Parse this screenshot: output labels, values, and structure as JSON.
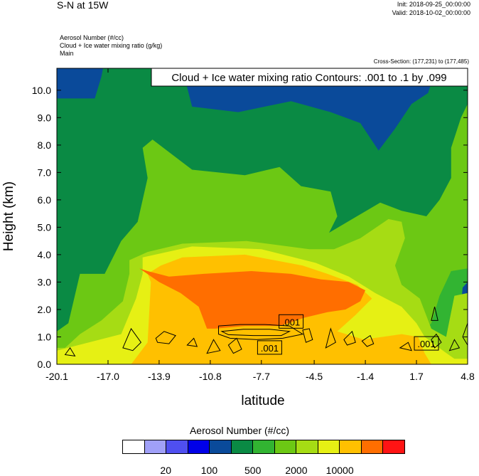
{
  "header": {
    "title": "S-N at 15W",
    "init": "Init: 2018-09-25_00:00:00",
    "valid": "Valid: 2018-10-02_00:00:00",
    "fields": [
      "Aerosol Number   (#/cc)",
      "Cloud + Ice water mixing ratio   (g/kg)",
      "Main"
    ],
    "cross_section": "Cross-Section: (177,231) to (177,485)"
  },
  "colors": {
    "levels": [
      "#ffffff",
      "#a0a0f8",
      "#4f4ff0",
      "#0000e8",
      "#0a4a9a",
      "#0a8a44",
      "#32b432",
      "#6cc814",
      "#a6dc14",
      "#e6f014",
      "#ffc000",
      "#ff6e00",
      "#ff1414"
    ]
  },
  "chart_data": {
    "type": "heatmap",
    "title": "",
    "xlabel": "latitude",
    "ylabel": "Height (km)",
    "annotation": "Cloud + Ice water mixing ratio Contours: .001 to .1 by .099",
    "x_ticks": [
      "-20.1",
      "-17.0",
      "-13.9",
      "-10.8",
      "-7.7",
      "-4.5",
      "-1.4",
      "1.7",
      "4.8"
    ],
    "x_tick_values": [
      -20.1,
      -17.0,
      -13.9,
      -10.8,
      -7.7,
      -4.5,
      -1.4,
      1.7,
      4.8
    ],
    "y_ticks": [
      "0.0",
      "1.0",
      "2.0",
      "3.0",
      "4.0",
      "5.0",
      "6.0",
      "7.0",
      "8.0",
      "9.0",
      "10.0"
    ],
    "y_tick_values": [
      0,
      1,
      2,
      3,
      4,
      5,
      6,
      7,
      8,
      9,
      10
    ],
    "xlim": [
      -20.1,
      4.8
    ],
    "ylim": [
      0,
      10.8
    ],
    "contour_labels": [
      {
        "text": ".001",
        "x": -5.9,
        "y": 1.55
      },
      {
        "text": ".001",
        "x": -7.2,
        "y": 0.6
      },
      {
        "text": ".001",
        "x": 2.3,
        "y": 0.75
      }
    ],
    "colorbar": {
      "title": "Aerosol Number  (#/cc)",
      "labels": [
        "20",
        "100",
        "500",
        "2000",
        "10000"
      ]
    },
    "regions": [
      {
        "level": 7,
        "poly": [
          [
            -20.1,
            0
          ],
          [
            4.8,
            0
          ],
          [
            4.8,
            10.8
          ],
          [
            -20.1,
            10.8
          ]
        ]
      },
      {
        "level": 6,
        "poly": [
          [
            -20.1,
            0
          ],
          [
            4.8,
            0
          ],
          [
            4.8,
            3.5
          ],
          [
            3.8,
            3.4
          ],
          [
            3.1,
            2.5
          ],
          [
            2.6,
            1.5
          ],
          [
            1.8,
            1.0
          ],
          [
            -1.4,
            0.6
          ],
          [
            -10.5,
            0.5
          ],
          [
            -20.1,
            0.6
          ]
        ]
      },
      {
        "level": 5,
        "poly": [
          [
            -20.1,
            1.2
          ],
          [
            -19.4,
            1.5
          ],
          [
            -18.7,
            3.3
          ],
          [
            -17.2,
            3.3
          ],
          [
            -16.2,
            4.5
          ],
          [
            -15.2,
            5.2
          ],
          [
            -14.6,
            6.8
          ],
          [
            -14.9,
            7.9
          ],
          [
            -14.3,
            8.2
          ],
          [
            -11.9,
            7.1
          ],
          [
            -8.7,
            6.9
          ],
          [
            -6.6,
            7.2
          ],
          [
            -5.3,
            6.5
          ],
          [
            -3.5,
            6.3
          ],
          [
            -3.1,
            5.4
          ],
          [
            -3.6,
            4.8
          ],
          [
            -0.5,
            5.9
          ],
          [
            0.8,
            5.6
          ],
          [
            2.3,
            5.4
          ],
          [
            3.1,
            6.0
          ],
          [
            3.8,
            6.8
          ],
          [
            3.8,
            7.9
          ],
          [
            4.4,
            9.0
          ],
          [
            4.8,
            9.5
          ],
          [
            4.8,
            10.8
          ],
          [
            -20.1,
            10.8
          ]
        ]
      },
      {
        "level": 4,
        "poly": [
          [
            -20.1,
            9.7
          ],
          [
            -17.8,
            9.7
          ],
          [
            -17.4,
            10.5
          ],
          [
            -17.3,
            10.8
          ],
          [
            -20.1,
            10.8
          ]
        ]
      },
      {
        "level": 4,
        "poly": [
          [
            -12.5,
            10.8
          ],
          [
            -11.9,
            9.4
          ],
          [
            -9.1,
            9.2
          ],
          [
            -5.9,
            9.6
          ],
          [
            -3.5,
            9.2
          ],
          [
            -1.7,
            8.8
          ],
          [
            -0.6,
            7.8
          ],
          [
            0.4,
            8.6
          ],
          [
            1.4,
            9.5
          ],
          [
            2.4,
            9.9
          ],
          [
            2.9,
            10.8
          ]
        ]
      },
      {
        "level": 4,
        "poly": [
          [
            4.4,
            2.2
          ],
          [
            4.8,
            2.2
          ],
          [
            4.8,
            3.0
          ],
          [
            4.5,
            2.8
          ]
        ]
      },
      {
        "level": 8,
        "poly": [
          [
            -20.1,
            0.6
          ],
          [
            -19.6,
            0.6
          ],
          [
            -18.7,
            1.1
          ],
          [
            -17.4,
            1.6
          ],
          [
            -16.1,
            2.3
          ],
          [
            -15.7,
            3.3
          ],
          [
            -15.7,
            3.8
          ],
          [
            -14.6,
            4.1
          ],
          [
            -12.5,
            4.4
          ],
          [
            -8.6,
            4.5
          ],
          [
            -4.8,
            4.2
          ],
          [
            -3.3,
            4.2
          ],
          [
            -1.7,
            4.6
          ],
          [
            0.0,
            5.3
          ],
          [
            0.8,
            5.2
          ],
          [
            1.0,
            4.6
          ],
          [
            0.4,
            3.6
          ],
          [
            0.8,
            2.9
          ],
          [
            1.9,
            2.4
          ],
          [
            2.6,
            1.3
          ],
          [
            3.5,
            1.0
          ],
          [
            4.0,
            2.5
          ],
          [
            4.8,
            2.6
          ],
          [
            4.8,
            0
          ],
          [
            -20.1,
            0
          ]
        ]
      },
      {
        "level": 9,
        "poly": [
          [
            -20.1,
            0
          ],
          [
            -20.1,
            0.5
          ],
          [
            -16.2,
            1.1
          ],
          [
            -15.3,
            2.4
          ],
          [
            -14.9,
            3.3
          ],
          [
            -14.9,
            3.9
          ],
          [
            -11.9,
            4.3
          ],
          [
            -7.7,
            4.2
          ],
          [
            -4.4,
            3.7
          ],
          [
            -2.4,
            3.2
          ],
          [
            -0.8,
            2.6
          ],
          [
            0.8,
            2.1
          ],
          [
            1.7,
            1.5
          ],
          [
            2.2,
            1.0
          ],
          [
            3.3,
            0.5
          ],
          [
            4.0,
            0.2
          ],
          [
            4.8,
            0.2
          ],
          [
            4.8,
            0
          ]
        ]
      },
      {
        "level": 10,
        "poly": [
          [
            -15.6,
            0
          ],
          [
            -14.6,
            0.8
          ],
          [
            -14.4,
            3.0
          ],
          [
            -14.6,
            3.3
          ],
          [
            -13.8,
            3.6
          ],
          [
            -12.5,
            3.9
          ],
          [
            -8.7,
            4.0
          ],
          [
            -5.2,
            3.6
          ],
          [
            -3.7,
            3.3
          ],
          [
            -1.9,
            2.9
          ],
          [
            -1.0,
            2.4
          ],
          [
            -2.0,
            1.8
          ],
          [
            -3.1,
            1.2
          ],
          [
            -1.5,
            0.9
          ],
          [
            0.8,
            1.1
          ],
          [
            1.8,
            1.0
          ],
          [
            2.2,
            0.4
          ],
          [
            2.6,
            0
          ],
          [
            -15.6,
            0
          ]
        ]
      },
      {
        "level": 11,
        "poly": [
          [
            -15.1,
            3.5
          ],
          [
            -13.9,
            3.0
          ],
          [
            -12.6,
            2.6
          ],
          [
            -11.5,
            2.1
          ],
          [
            -11.0,
            1.3
          ],
          [
            -10.5,
            1.3
          ],
          [
            -8.7,
            1.4
          ],
          [
            -6.6,
            1.4
          ],
          [
            -5.1,
            1.7
          ],
          [
            -3.7,
            1.9
          ],
          [
            -2.6,
            2.0
          ],
          [
            -1.7,
            2.3
          ],
          [
            -1.4,
            2.7
          ],
          [
            -2.4,
            3.0
          ],
          [
            -4.1,
            3.1
          ],
          [
            -5.9,
            3.3
          ],
          [
            -8.3,
            3.4
          ],
          [
            -11.2,
            3.3
          ],
          [
            -13.3,
            3.2
          ],
          [
            -14.6,
            3.4
          ]
        ]
      }
    ],
    "contours": [
      [
        [
          -10.3,
          1.4
        ],
        [
          -9.0,
          1.45
        ],
        [
          -7.5,
          1.45
        ],
        [
          -6.0,
          1.4
        ],
        [
          -5.2,
          1.1
        ],
        [
          -6.4,
          0.95
        ],
        [
          -8.0,
          0.9
        ],
        [
          -9.6,
          0.95
        ],
        [
          -10.3,
          1.1
        ]
      ],
      [
        [
          -10.1,
          1.2
        ],
        [
          -8.8,
          1.28
        ],
        [
          -7.2,
          1.28
        ],
        [
          -6.0,
          1.2
        ],
        [
          -6.5,
          1.05
        ],
        [
          -8.2,
          1.05
        ],
        [
          -9.7,
          1.08
        ]
      ],
      [
        [
          -16.1,
          0.6
        ],
        [
          -15.6,
          1.3
        ],
        [
          -15.0,
          0.8
        ],
        [
          -15.5,
          0.5
        ]
      ],
      [
        [
          -14.1,
          0.95
        ],
        [
          -13.6,
          1.2
        ],
        [
          -12.9,
          1.05
        ],
        [
          -13.3,
          0.75
        ],
        [
          -14.0,
          0.8
        ]
      ],
      [
        [
          -12.2,
          0.7
        ],
        [
          -11.8,
          0.95
        ],
        [
          -11.6,
          0.65
        ]
      ],
      [
        [
          -11.0,
          0.4
        ],
        [
          -10.6,
          0.9
        ],
        [
          -10.2,
          0.5
        ]
      ],
      [
        [
          -9.7,
          0.7
        ],
        [
          -9.2,
          0.95
        ],
        [
          -8.9,
          0.55
        ],
        [
          -9.4,
          0.4
        ]
      ],
      [
        [
          -5.2,
          1.25
        ],
        [
          -4.8,
          1.3
        ],
        [
          -4.6,
          0.9
        ],
        [
          -5.0,
          0.8
        ]
      ],
      [
        [
          -3.8,
          0.6
        ],
        [
          -3.5,
          1.3
        ],
        [
          -3.2,
          0.8
        ]
      ],
      [
        [
          -2.7,
          0.9
        ],
        [
          -2.2,
          1.2
        ],
        [
          -2.0,
          0.8
        ],
        [
          -2.5,
          0.7
        ]
      ],
      [
        [
          -1.6,
          0.85
        ],
        [
          -1.1,
          1.05
        ],
        [
          -0.9,
          0.75
        ],
        [
          -1.3,
          0.65
        ]
      ],
      [
        [
          0.7,
          0.6
        ],
        [
          1.2,
          0.8
        ],
        [
          1.4,
          0.5
        ]
      ],
      [
        [
          2.6,
          0.9
        ],
        [
          2.9,
          1.1
        ],
        [
          3.2,
          0.8
        ],
        [
          2.8,
          0.6
        ]
      ],
      [
        [
          3.7,
          0.5
        ],
        [
          4.0,
          0.9
        ],
        [
          4.3,
          0.6
        ]
      ],
      [
        [
          4.5,
          1.0
        ],
        [
          4.8,
          1.5
        ],
        [
          4.8,
          0.7
        ]
      ],
      [
        [
          2.6,
          1.6
        ],
        [
          2.8,
          2.1
        ],
        [
          3.0,
          1.6
        ]
      ],
      [
        [
          -19.6,
          0.35
        ],
        [
          -19.3,
          0.6
        ],
        [
          -19.0,
          0.3
        ]
      ]
    ]
  }
}
